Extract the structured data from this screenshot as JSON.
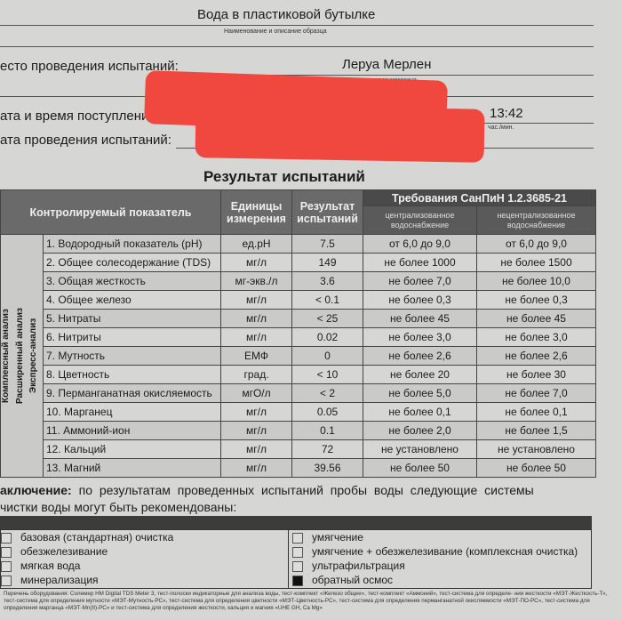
{
  "header": {
    "sample": "Вода в пластиковой бутылке",
    "sample_caption": "Наименование и описание образца",
    "place_label": "есто проведения испытаний:",
    "place_value": "Леруа Мерлен",
    "place_caption": "название и адрес магазина",
    "received_label": "ата и время поступления обр",
    "time_value": "13:42",
    "time_caption": "час./мин.",
    "test_date_label": "ата проведения испытаний:"
  },
  "redaction_color": "#f0473e",
  "results": {
    "title": "Результат испытаний",
    "columns": {
      "indicator": "Контролируемый показатель",
      "units": "Единицы измерения",
      "result": "Результат испытаний",
      "requirements": "Требования СанПиН 1.2.3685-21",
      "central": "централизованное водоснабжение",
      "decentral": "нецентрализованное водоснабжение"
    },
    "groups": {
      "complex": "Комплексный анализ",
      "extended": "Расширенный анализ",
      "express": "Экспресс-анализ"
    },
    "rows": [
      {
        "name": "1. Водородный показатель (pH)",
        "unit": "ед.pH",
        "result": "7.5",
        "central": "от 6,0 до 9,0",
        "decentral": "от 6,0 до 9,0"
      },
      {
        "name": "2. Общее солесодержание (TDS)",
        "unit": "мг/л",
        "result": "149",
        "central": "не более 1000",
        "decentral": "не более 1500"
      },
      {
        "name": "3. Общая жесткость",
        "unit": "мг-экв./л",
        "result": "3.6",
        "central": "не более 7,0",
        "decentral": "не более 10,0"
      },
      {
        "name": "4. Общее железо",
        "unit": "мг/л",
        "result": "< 0.1",
        "central": "не более 0,3",
        "decentral": "не более 0,3"
      },
      {
        "name": "5. Нитраты",
        "unit": "мг/л",
        "result": "< 25",
        "central": "не более 45",
        "decentral": "не более 45"
      },
      {
        "name": "6. Нитриты",
        "unit": "мг/л",
        "result": "0.02",
        "central": "не более 3,0",
        "decentral": "не более 3,0"
      },
      {
        "name": "7. Мутность",
        "unit": "ЕМФ",
        "result": "0",
        "central": "не более 2,6",
        "decentral": "не более 2,6"
      },
      {
        "name": "8. Цветность",
        "unit": "град.",
        "result": "< 10",
        "central": "не более 20",
        "decentral": "не более 30"
      },
      {
        "name": "9. Перманганатная окисляемость",
        "unit": "мгО/л",
        "result": "< 2",
        "central": "не более 5,0",
        "decentral": "не более 7,0"
      },
      {
        "name": "10. Марганец",
        "unit": "мг/л",
        "result": "0.05",
        "central": "не более 0,1",
        "decentral": "не более 0,1"
      },
      {
        "name": "11. Аммоний-ион",
        "unit": "мг/л",
        "result": "0.1",
        "central": "не более 2,0",
        "decentral": "не более 1,5"
      },
      {
        "name": "12. Кальций",
        "unit": "мг/л",
        "result": "72",
        "central": "не установлено",
        "decentral": "не установлено"
      },
      {
        "name": "13. Магний",
        "unit": "мг/л",
        "result": "39.56",
        "central": "не более 50",
        "decentral": "не более 50"
      }
    ]
  },
  "conclusion": {
    "label": "аключение:",
    "text1": "по результатам проведенных испытаний пробы воды следующие системы",
    "text2": "чистки воды могут быть рекомендованы:",
    "left": [
      {
        "label": "базовая (стандартная) очистка",
        "checked": false
      },
      {
        "label": "обезжелезивание",
        "checked": false
      },
      {
        "label": "мягкая вода",
        "checked": false
      },
      {
        "label": "минерализация",
        "checked": false
      }
    ],
    "right": [
      {
        "label": "умягчение",
        "checked": false
      },
      {
        "label": "умягчение + обезжелезивание (комплексная очистка)",
        "checked": false
      },
      {
        "label": "ультрафильтрация",
        "checked": false
      },
      {
        "label": "обратный осмос",
        "checked": true
      }
    ]
  },
  "footer": "Перечень оборудования: Солемер HM Digital TDS Meter 3, тест-полоски индикаторные для анализа воды, тест-комплект «Железо общее», тест-комплект «Аммоний», тест-система для определе- ния жесткости «МЭТ-Жесткость-Т», тест-система для определения мутности «МЭТ-Мутность-РС», тест-система для определения цветности «МЭТ-Цветность-РС», тест-система для определения перманганатной окисляемости «МЭТ-ПО-РС», тест-система для определения марганца «МЭТ-Mn(II)-РС» и тест-система для определения жесткости, кальция и магния «UHE GH, Ca Mg»"
}
